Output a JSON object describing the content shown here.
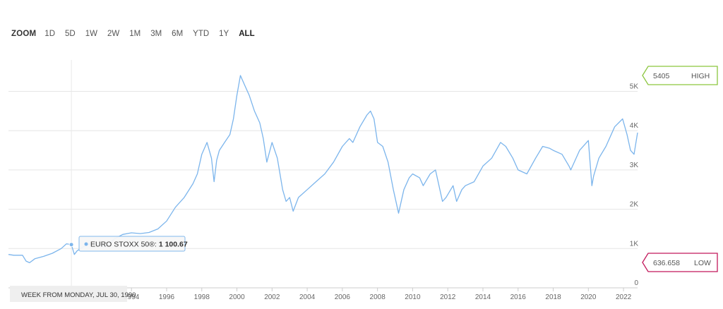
{
  "zoom": {
    "label": "ZOOM",
    "buttons": [
      "1D",
      "5D",
      "1W",
      "2W",
      "1M",
      "3M",
      "6M",
      "YTD",
      "1Y",
      "ALL"
    ],
    "active": "ALL"
  },
  "high_flag": {
    "value": "5405",
    "label": "HIGH",
    "color": "#8cc63f"
  },
  "low_flag": {
    "value": "636.658",
    "label": "LOW",
    "color": "#c2185b"
  },
  "tooltip": {
    "series_label": "EURO STOXX 50®: ",
    "value_text": "1 100.67"
  },
  "x_tooltip": "WEEK FROM MONDAY, JUL 30, 1990",
  "colors": {
    "line": "#7cb5ec",
    "grid": "#e6e6e6",
    "axis_text": "#666666"
  },
  "chart_data": {
    "type": "line",
    "series": [
      {
        "name": "EURO STOXX 50®",
        "x": [
          1987.0,
          1987.3,
          1987.8,
          1988.0,
          1988.2,
          1988.5,
          1989.0,
          1989.5,
          1990.0,
          1990.3,
          1990.58,
          1990.75,
          1990.9,
          1991.1,
          1991.5,
          1992.0,
          1992.5,
          1992.8,
          1993.0,
          1993.5,
          1994.0,
          1994.5,
          1995.0,
          1995.5,
          1996.0,
          1996.5,
          1997.0,
          1997.5,
          1997.75,
          1998.0,
          1998.3,
          1998.55,
          1998.7,
          1998.85,
          1999.0,
          1999.3,
          1999.6,
          1999.8,
          2000.0,
          2000.2,
          2000.4,
          2000.7,
          2001.0,
          2001.3,
          2001.5,
          2001.7,
          2002.0,
          2002.3,
          2002.6,
          2002.8,
          2003.0,
          2003.2,
          2003.5,
          2004.0,
          2004.5,
          2005.0,
          2005.5,
          2006.0,
          2006.4,
          2006.6,
          2007.0,
          2007.4,
          2007.6,
          2007.8,
          2008.0,
          2008.3,
          2008.6,
          2008.9,
          2009.2,
          2009.5,
          2009.8,
          2010.0,
          2010.4,
          2010.6,
          2011.0,
          2011.3,
          2011.7,
          2011.9,
          2012.3,
          2012.5,
          2012.8,
          2013.0,
          2013.5,
          2014.0,
          2014.5,
          2015.0,
          2015.3,
          2015.7,
          2016.0,
          2016.5,
          2017.0,
          2017.4,
          2017.8,
          2018.0,
          2018.5,
          2018.9,
          2019.0,
          2019.5,
          2020.0,
          2020.2,
          2020.3,
          2020.6,
          2021.0,
          2021.5,
          2021.95,
          2022.2,
          2022.4,
          2022.6,
          2022.8
        ],
        "values": [
          850,
          830,
          830,
          680,
          640,
          740,
          800,
          880,
          1000,
          1120,
          1100.67,
          850,
          940,
          1000,
          1110,
          1120,
          1050,
          1150,
          1240,
          1360,
          1400,
          1380,
          1410,
          1500,
          1700,
          2050,
          2300,
          2650,
          2900,
          3400,
          3700,
          3300,
          2700,
          3250,
          3500,
          3700,
          3900,
          4300,
          4900,
          5405,
          5200,
          4900,
          4500,
          4200,
          3800,
          3200,
          3700,
          3300,
          2500,
          2200,
          2300,
          1950,
          2300,
          2500,
          2700,
          2900,
          3200,
          3600,
          3800,
          3700,
          4100,
          4400,
          4500,
          4300,
          3700,
          3600,
          3200,
          2500,
          1900,
          2500,
          2800,
          2900,
          2800,
          2600,
          2900,
          3000,
          2200,
          2300,
          2600,
          2200,
          2500,
          2600,
          2700,
          3100,
          3300,
          3700,
          3600,
          3300,
          3000,
          2900,
          3300,
          3600,
          3550,
          3500,
          3400,
          3100,
          3000,
          3500,
          3750,
          2600,
          2850,
          3300,
          3600,
          4100,
          4300,
          3900,
          3500,
          3400,
          3950
        ]
      }
    ],
    "yticks": [
      0,
      1000,
      2000,
      3000,
      4000,
      5000
    ],
    "ytick_labels": [
      "0",
      "1K",
      "2K",
      "3K",
      "4K",
      "5K"
    ],
    "xticks": [
      1994,
      1996,
      1998,
      2000,
      2002,
      2004,
      2006,
      2008,
      2010,
      2012,
      2014,
      2016,
      2018,
      2020,
      2022
    ],
    "xlim": [
      1987.0,
      2022.8
    ],
    "ylim": [
      0,
      5800
    ],
    "grid": true,
    "highlight_x": 1990.58,
    "highlight_value": 1100.67
  }
}
